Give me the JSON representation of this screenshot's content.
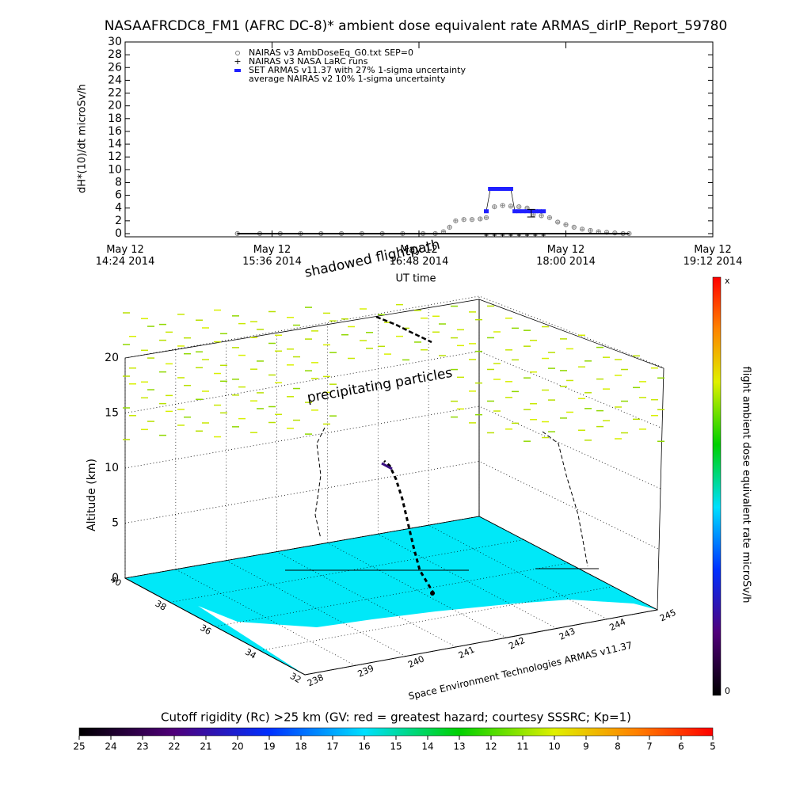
{
  "chart_data": {
    "type": "line",
    "title": "NASAAFRCDC8_FM1 (AFRC DC-8)* ambient dose equivalent rate ARMAS_dirIP_Report_59780",
    "ylabel": "dH*(10)/dt microSv/h",
    "xlabel": "UT time",
    "xlim": [
      864,
      1152
    ],
    "xticks": [
      {
        "value": 864,
        "label": "May 12\n14:24 2014"
      },
      {
        "value": 936,
        "label": "May 12\n15:36 2014"
      },
      {
        "value": 1008,
        "label": "May 12\n16:48 2014"
      },
      {
        "value": 1080,
        "label": "May 12\n18:00 2014"
      },
      {
        "value": 1152,
        "label": "May 12\n19:12 2014"
      }
    ],
    "ylim": [
      -0.5,
      30
    ],
    "yticks": [
      0,
      2,
      4,
      6,
      8,
      10,
      12,
      14,
      16,
      18,
      20,
      22,
      24,
      26,
      28,
      30
    ],
    "series": [
      {
        "name": "NAIRAS v3 AmbDoseEq_G0.txt SEP=0",
        "color": "#808080",
        "marker": "circle",
        "x": [
          919,
          930,
          940,
          950,
          960,
          970,
          980,
          990,
          1000,
          1010,
          1016,
          1020,
          1023,
          1026,
          1030,
          1034,
          1038,
          1041,
          1045,
          1049,
          1053,
          1057,
          1061,
          1064,
          1068,
          1072,
          1076,
          1080,
          1084,
          1088,
          1092,
          1096,
          1100,
          1104,
          1108,
          1111
        ],
        "values": [
          0,
          0,
          0,
          0,
          0,
          0,
          0,
          0,
          0,
          0,
          0,
          0.3,
          1,
          2,
          2.2,
          2.2,
          2.3,
          2.5,
          4.2,
          4.4,
          4.3,
          4.2,
          4,
          3,
          2.8,
          2.5,
          1.8,
          1.4,
          1,
          0.7,
          0.5,
          0.3,
          0.2,
          0.1,
          0,
          0
        ]
      },
      {
        "name": "NAIRAS v3 NASA LaRC runs",
        "color": "#000000",
        "marker": "plus",
        "x": [
          1041,
          1045,
          1049,
          1053,
          1057,
          1061,
          1065,
          1069
        ],
        "values": [
          0,
          0,
          0,
          0,
          0,
          0,
          0,
          0
        ]
      },
      {
        "name": "SET ARMAS v11.37 with 27% 1-sigma uncertainty",
        "color": "#2020ff",
        "marker": "bar",
        "x": [
          1041,
          1043,
          1045,
          1047,
          1049,
          1051,
          1053,
          1055,
          1057,
          1059,
          1061,
          1063,
          1065,
          1067,
          1069
        ],
        "values": [
          3.5,
          7,
          7,
          7,
          7,
          7,
          7,
          3.5,
          3.5,
          3.5,
          3.5,
          3.5,
          3.5,
          3.5,
          3.5
        ]
      },
      {
        "name": "average NAIRAS v2 10% 1-sigma uncertainty",
        "color": "#000000",
        "marker": "errorbar",
        "x": [
          1063
        ],
        "values": [
          3.2
        ],
        "errors": [
          0.6
        ]
      }
    ]
  },
  "panel3d": {
    "annotations": [
      "shadowed flightpath",
      "precipitating particles"
    ],
    "zlabel": "Altitude (km)",
    "zticks": [
      0,
      5,
      10,
      15,
      20
    ],
    "lat_ticks": [
      40,
      38,
      36,
      34,
      32
    ],
    "lon_ticks": [
      238,
      239,
      240,
      241,
      242,
      243,
      244,
      245
    ],
    "credit": "Space Environment Technologies ARMAS v11.37"
  },
  "dose_colorbar": {
    "label": "flight ambient dose equivalent rate microSv/h",
    "max_label": "x",
    "min_label": 0
  },
  "rigidity_colorbar": {
    "title": "Cutoff rigidity (Rc) >25 km (GV: red = greatest hazard; courtesy SSSRC; Kp=1)",
    "range": [
      25,
      5
    ],
    "ticks": [
      25,
      24,
      23,
      22,
      21,
      20,
      19,
      18,
      17,
      16,
      15,
      14,
      13,
      12,
      11,
      10,
      9,
      8,
      7,
      6,
      5
    ]
  }
}
